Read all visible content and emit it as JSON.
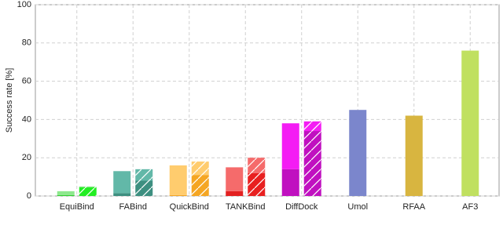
{
  "chart_data": {
    "type": "grouped_stacked_bar",
    "y_label": "Success rate [%]",
    "categories": [
      "EquiBind",
      "FABind",
      "QuickBind",
      "TANKBind",
      "DiffDock",
      "Umol",
      "RFAA",
      "AF3"
    ],
    "series": [
      {
        "stack": 0,
        "hatch": false,
        "colors": [
          "#2fcf2f",
          "#3d8f80",
          "#f5a623",
          "#e32020",
          "#c010c0",
          "#7b86cc",
          "#d8b540",
          "#c0e060"
        ],
        "values": [
          0.5,
          1.5,
          0.5,
          2.5,
          14,
          null,
          null,
          null
        ]
      },
      {
        "stack": 0,
        "hatch": false,
        "colors": [
          "#8ee88e",
          "#62b8a8",
          "#ffcc6e",
          "#f56b6b",
          "#f41cf4",
          "#7b86cc",
          "#d8b540",
          "#c0e060"
        ],
        "values": [
          2,
          11.5,
          15.5,
          12.5,
          24,
          45,
          42,
          76
        ]
      },
      {
        "stack": 1,
        "hatch": true,
        "colors": [
          "#22ee22",
          "#3d8f80",
          "#f5a623",
          "#e82020",
          "#c010c0",
          "#7b86cc",
          "#d8b540",
          "#c0e060"
        ],
        "values": [
          4.5,
          8,
          11,
          12,
          34,
          null,
          null,
          null
        ]
      },
      {
        "stack": 1,
        "hatch": true,
        "colors": [
          "#8ee88e",
          "#62b8a8",
          "#ffcc6e",
          "#f56b6b",
          "#f41cf4",
          "#7b86cc",
          "#d8b540",
          "#c0e060"
        ],
        "values": [
          0.5,
          6,
          7,
          8,
          5,
          null,
          null,
          null
        ]
      }
    ],
    "ylim": [
      0,
      100
    ],
    "yticks": [
      0,
      20,
      40,
      60,
      80,
      100
    ],
    "grid": true
  }
}
